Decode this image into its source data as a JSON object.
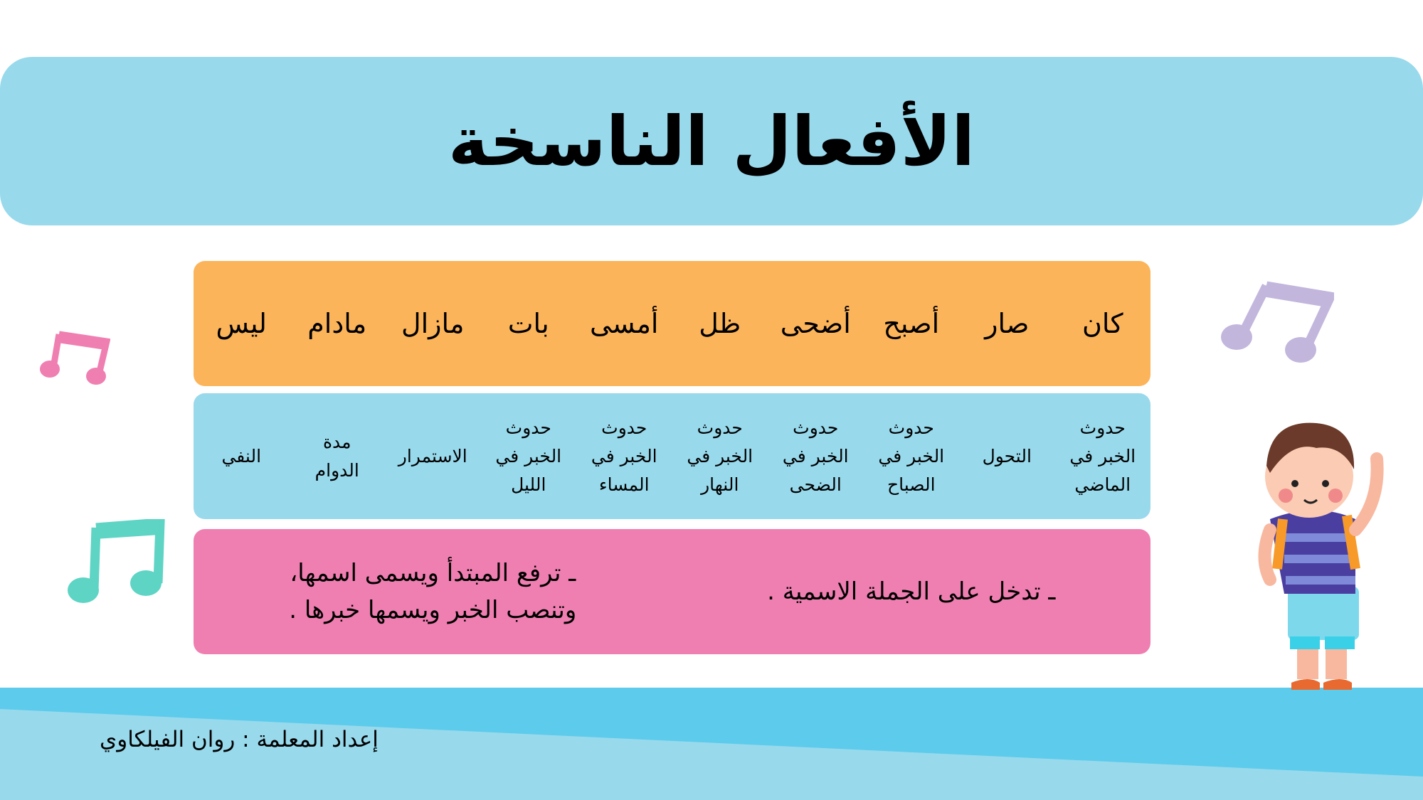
{
  "title": "الأفعال الناسخة",
  "verbs": [
    "كان",
    "صار",
    "أصبح",
    "أضحى",
    "ظل",
    "أمسى",
    "بات",
    "مازال",
    "مادام",
    "ليس"
  ],
  "meanings": [
    "حدوث\nالخبر في\nالماضي",
    "التحول",
    "حدوث\nالخبر في\nالصباح",
    "حدوث\nالخبر في\nالضحى",
    "حدوث\nالخبر في\nالنهار",
    "حدوث\nالخبر في\nالمساء",
    "حدوث\nالخبر في\nالليل",
    "الاستمرار",
    "مدة\nالدوام",
    "النفي"
  ],
  "rules": [
    "ـ تدخل على الجملة الاسمية .",
    "ـ ترفع المبتدأ ويسمى اسمها،\nوتنصب الخبر ويسمها خبرها ."
  ],
  "footer": "إعداد المعلمة : روان الفيلكاوي",
  "colors": {
    "title_bg": "#98d9ec",
    "verbs_bg": "#fcb45a",
    "meanings_bg": "#98d9ec",
    "rules_bg": "#f07fb1",
    "footer_bg": "#5ccbec"
  }
}
